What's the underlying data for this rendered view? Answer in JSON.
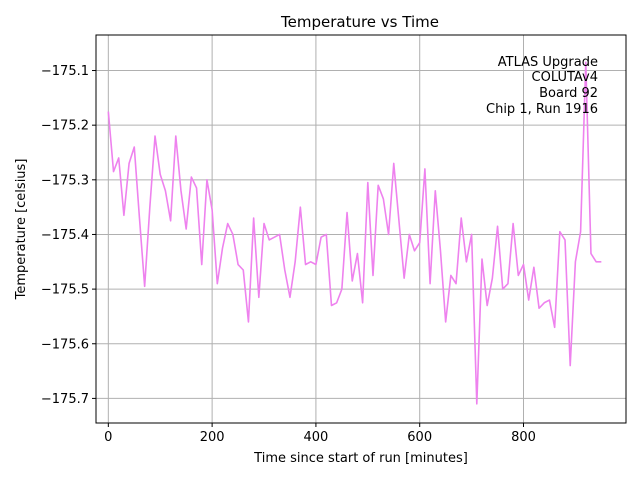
{
  "chart_data": {
    "type": "line",
    "title": "Temperature vs Time",
    "xlabel": "Time since start of run [minutes]",
    "ylabel": "Temperature [celsius]",
    "xlim": [
      -23.75,
      997.5
    ],
    "ylim": [
      -175.745,
      -175.035
    ],
    "xticks": [
      0,
      200,
      400,
      600,
      800
    ],
    "xtick_labels": [
      "0",
      "200",
      "400",
      "600",
      "800"
    ],
    "yticks": [
      -175.7,
      -175.6,
      -175.5,
      -175.4,
      -175.3,
      -175.2,
      -175.1
    ],
    "ytick_labels": [
      "−175.7",
      "−175.6",
      "−175.5",
      "−175.4",
      "−175.3",
      "−175.2",
      "−175.1"
    ],
    "grid": true,
    "line_color": "#ee82ee",
    "annotation": [
      "ATLAS Upgrade",
      "COLUTAv4",
      "Board 92",
      "Chip 1, Run 1916"
    ],
    "annotation_position": "top-right",
    "series": [
      {
        "name": "Temperature",
        "x": [
          0,
          10,
          20,
          30,
          40,
          50,
          60,
          70,
          80,
          90,
          100,
          110,
          120,
          130,
          140,
          150,
          160,
          170,
          180,
          190,
          200,
          210,
          220,
          230,
          240,
          250,
          260,
          270,
          280,
          290,
          300,
          310,
          320,
          330,
          340,
          350,
          360,
          370,
          380,
          390,
          400,
          410,
          420,
          430,
          440,
          450,
          460,
          470,
          480,
          490,
          500,
          510,
          520,
          530,
          540,
          550,
          560,
          570,
          580,
          590,
          600,
          610,
          620,
          630,
          640,
          650,
          660,
          670,
          680,
          690,
          700,
          710,
          720,
          730,
          740,
          750,
          760,
          770,
          780,
          790,
          800,
          810,
          820,
          830,
          840,
          850,
          860,
          870,
          880,
          890,
          900,
          910,
          920,
          930,
          940,
          950
        ],
        "values": [
          -175.175,
          -175.285,
          -175.26,
          -175.365,
          -175.27,
          -175.24,
          -175.37,
          -175.495,
          -175.35,
          -175.22,
          -175.29,
          -175.32,
          -175.375,
          -175.22,
          -175.32,
          -175.39,
          -175.295,
          -175.315,
          -175.455,
          -175.3,
          -175.355,
          -175.49,
          -175.425,
          -175.38,
          -175.4,
          -175.455,
          -175.465,
          -175.56,
          -175.37,
          -175.515,
          -175.38,
          -175.41,
          -175.405,
          -175.4,
          -175.465,
          -175.515,
          -175.45,
          -175.35,
          -175.455,
          -175.45,
          -175.455,
          -175.405,
          -175.4,
          -175.53,
          -175.525,
          -175.5,
          -175.36,
          -175.485,
          -175.435,
          -175.525,
          -175.305,
          -175.475,
          -175.31,
          -175.335,
          -175.4,
          -175.27,
          -175.375,
          -175.48,
          -175.4,
          -175.43,
          -175.415,
          -175.28,
          -175.49,
          -175.32,
          -175.43,
          -175.56,
          -175.475,
          -175.49,
          -175.37,
          -175.45,
          -175.4,
          -175.71,
          -175.445,
          -175.53,
          -175.48,
          -175.385,
          -175.5,
          -175.49,
          -175.38,
          -175.475,
          -175.455,
          -175.52,
          -175.46,
          -175.535,
          -175.525,
          -175.52,
          -175.57,
          -175.395,
          -175.41,
          -175.64,
          -175.45,
          -175.395,
          -175.085,
          -175.435,
          -175.45,
          -175.45
        ]
      }
    ]
  }
}
